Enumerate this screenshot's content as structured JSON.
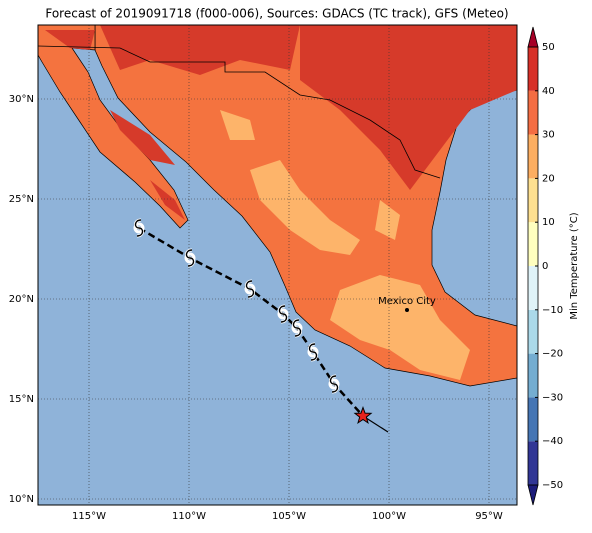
{
  "chart_data": {
    "type": "map",
    "title": "Forecast of 2019091718 (f000-006), Sources: GDACS (TC track), GFS (Meteo)",
    "xlim": [
      -117.55,
      -93.6
    ],
    "ylim": [
      9.7,
      33.7
    ],
    "xticks": [
      {
        "value": -115,
        "label": "115°W"
      },
      {
        "value": -110,
        "label": "110°W"
      },
      {
        "value": -105,
        "label": "105°W"
      },
      {
        "value": -100,
        "label": "100°W"
      },
      {
        "value": -95,
        "label": "95°W"
      }
    ],
    "yticks": [
      {
        "value": 10,
        "label": "10°N"
      },
      {
        "value": 15,
        "label": "15°N"
      },
      {
        "value": 20,
        "label": "20°N"
      },
      {
        "value": 25,
        "label": "25°N"
      },
      {
        "value": 30,
        "label": "30°N"
      }
    ],
    "grid": true,
    "track": {
      "lon": [
        -112.5,
        -109.95,
        -106.95,
        -105.3,
        -104.6,
        -103.8,
        -102.75
      ],
      "lat": [
        23.55,
        22.05,
        20.5,
        19.25,
        18.55,
        17.35,
        15.75
      ],
      "current": {
        "lon": -101.3,
        "lat": 14.15,
        "color": "#e8221c"
      },
      "end": {
        "lon": -100.05,
        "lat": 13.35
      }
    },
    "city": {
      "name": "Mexico City",
      "lon": -99.1,
      "lat": 19.45
    },
    "colorbar": {
      "label": "Min Temperature (°C)",
      "levels": [
        -50,
        -40,
        -30,
        -20,
        -10,
        0,
        10,
        20,
        30,
        40,
        50
      ],
      "colors": [
        "#313695",
        "#4575b4",
        "#74add1",
        "#abd9e9",
        "#e0f3f8",
        "#ffffbf",
        "#fee090",
        "#fdae61",
        "#f46d43",
        "#d73027"
      ],
      "under_color": "#1c1c7a",
      "over_color": "#a50026",
      "ticks": [
        {
          "value": -50,
          "label": "−50"
        },
        {
          "value": -40,
          "label": "−40"
        },
        {
          "value": -30,
          "label": "−30"
        },
        {
          "value": -20,
          "label": "−20"
        },
        {
          "value": -10,
          "label": "−10"
        },
        0,
        10,
        20,
        30,
        40,
        50
      ]
    }
  }
}
